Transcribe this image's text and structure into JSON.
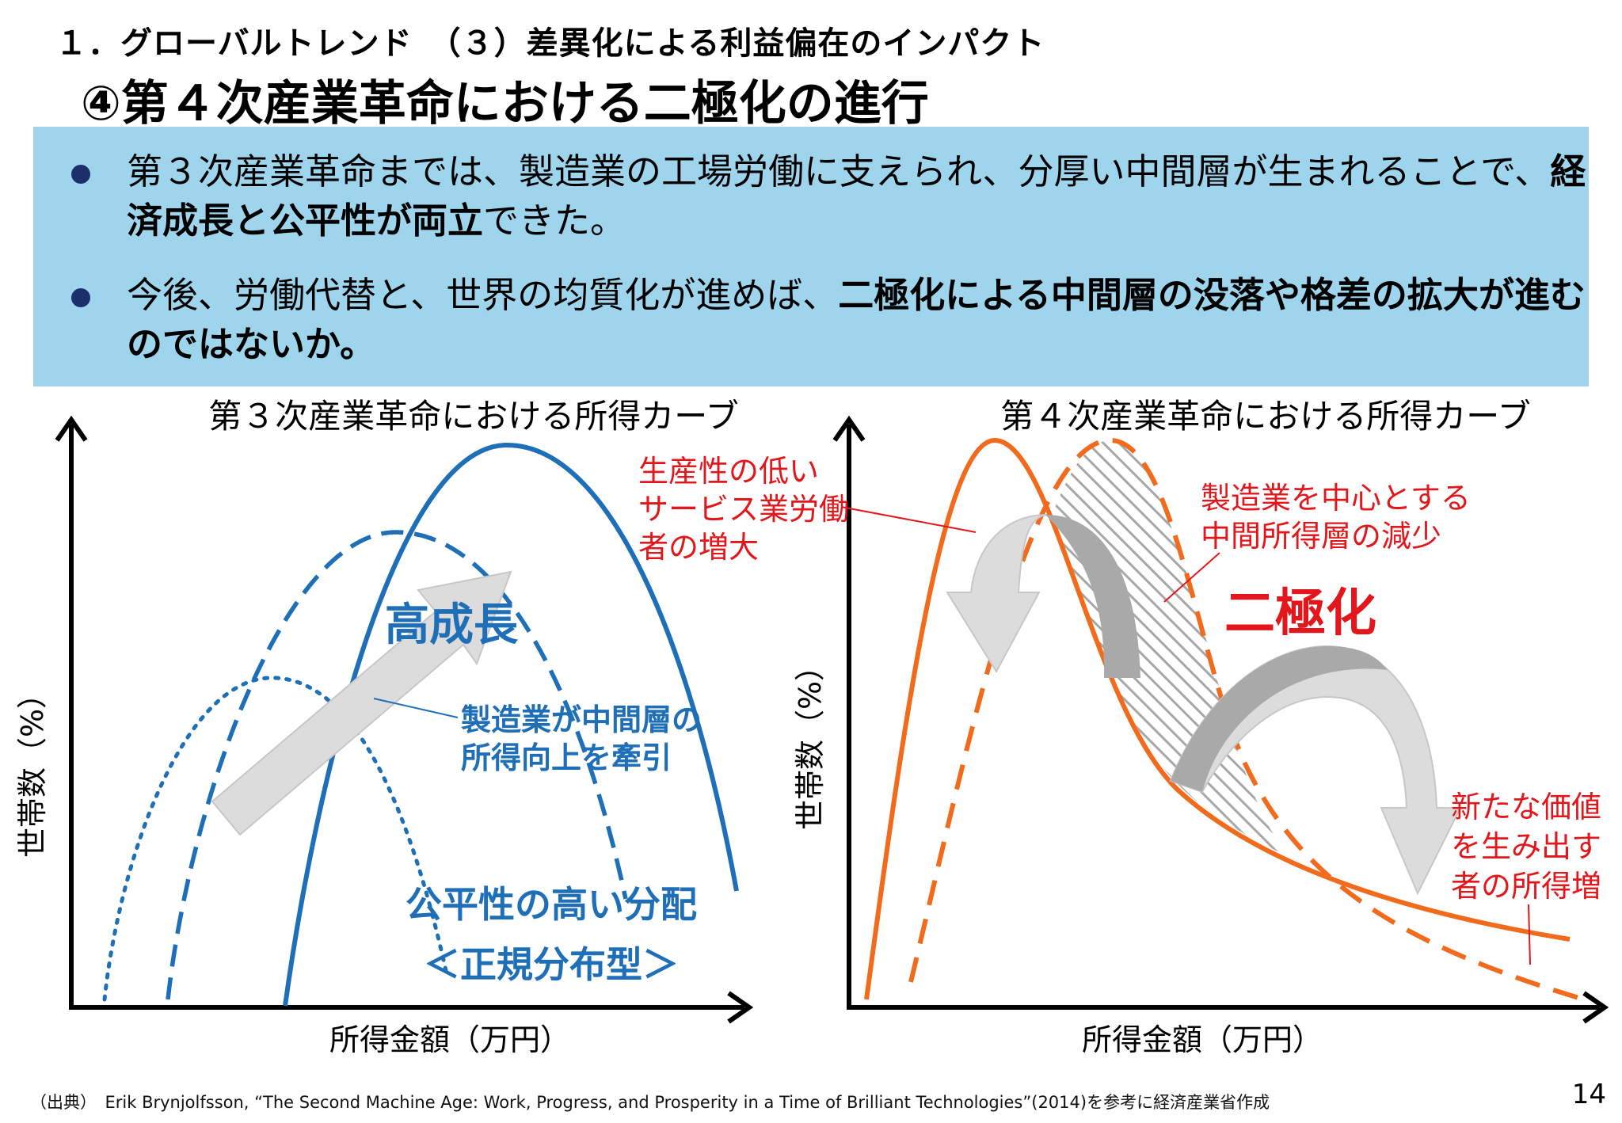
{
  "header": {
    "kicker": "１．グローバルトレンド　（３）差異化による利益偏在のインパクト",
    "title": "④第４次産業革命における二極化の進行"
  },
  "summary": {
    "bullet1": {
      "pre": "第３次産業革命までは、製造業の工場労働に支えられ、分厚い中間層が生まれることで、",
      "bold": "経済成長と公平性が両立",
      "post": "できた。"
    },
    "bullet2": {
      "pre": "今後、労働代替と、世界の均質化が進めば、",
      "bold": "二極化による中間層の没落や格差の拡大が進むのではないか。"
    }
  },
  "left_chart": {
    "title": "第３次産業革命における所得カーブ",
    "xlabel": "所得金額（万円）",
    "ylabel": "世帯数（%）",
    "arrow_label": "高成長",
    "callout": [
      "製造業が中間層の",
      "所得向上を牽引"
    ],
    "distribution": "公平性の高い分配",
    "type_label": "＜正規分布型＞"
  },
  "right_chart": {
    "title": "第４次産業革命における所得カーブ",
    "xlabel": "所得金額（万円）",
    "ylabel": "世帯数（%）",
    "note_low": [
      "生産性の低い",
      "サービス業労働",
      "者の増大"
    ],
    "note_middle": [
      "製造業を中心とする",
      "中間所得層の減少"
    ],
    "polarization": "二極化",
    "note_high": [
      "新たな価値",
      "を生み出す",
      "者の所得増"
    ]
  },
  "colors": {
    "blue": "#1e6fb8",
    "orange": "#f26a1b",
    "red": "#e3171b",
    "box": "#9ed4ec"
  },
  "footer": {
    "source": "（出典）　Erik Brynjolfsson, “The Second Machine Age: Work, Progress, and Prosperity in a Time of Brilliant Technologies”(2014)を参考に経済産業省作成",
    "page": "14"
  }
}
